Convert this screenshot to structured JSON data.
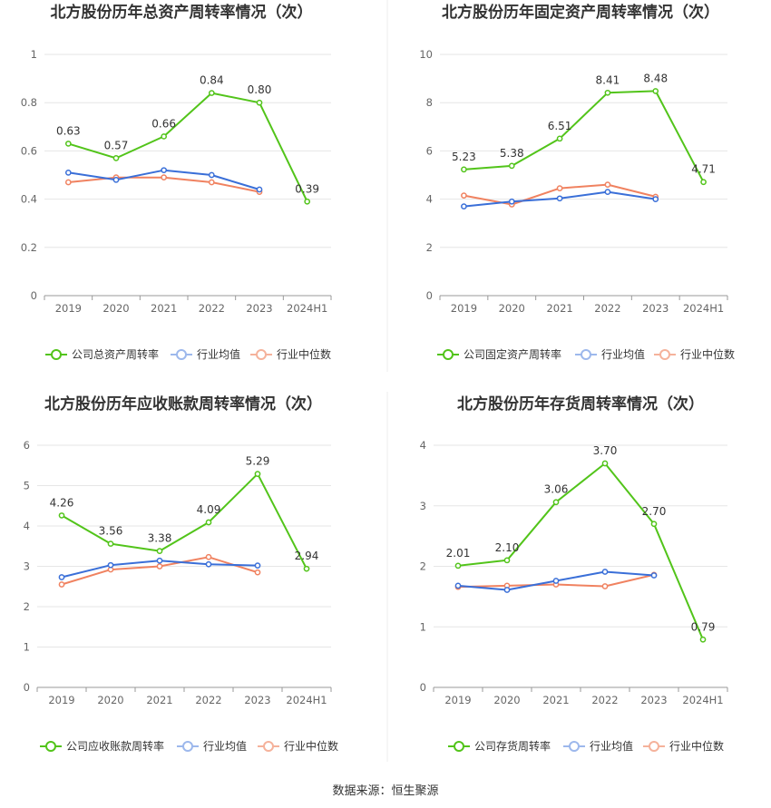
{
  "colors": {
    "company": "#52c41a",
    "industry_avg": "#3a6fd8",
    "industry_median": "#f08260",
    "grid": "#e6e6e6",
    "axis": "#999999"
  },
  "source": "数据来源：恒生聚源",
  "chart_data": [
    {
      "type": "line",
      "title": "北方股份历年总资产周转率情况（次）",
      "categories": [
        "2019",
        "2020",
        "2021",
        "2022",
        "2023",
        "2024H1"
      ],
      "ylim": [
        0,
        1
      ],
      "yticks": [
        "0",
        "0.2",
        "0.4",
        "0.6",
        "0.8",
        "1"
      ],
      "ytick_values": [
        0,
        0.2,
        0.4,
        0.6,
        0.8,
        1
      ],
      "series": [
        {
          "name": "公司总资产周转率",
          "values": [
            0.63,
            0.57,
            0.66,
            0.84,
            0.8,
            0.39
          ],
          "labels": [
            "0.63",
            "0.57",
            "0.66",
            "0.84",
            "0.80",
            "0.39"
          ]
        },
        {
          "name": "行业均值",
          "values": [
            0.51,
            0.48,
            0.52,
            0.5,
            0.44,
            null
          ]
        },
        {
          "name": "行业中位数",
          "values": [
            0.47,
            0.49,
            0.49,
            0.47,
            0.43,
            null
          ]
        }
      ]
    },
    {
      "type": "line",
      "title": "北方股份历年固定资产周转率情况（次）",
      "categories": [
        "2019",
        "2020",
        "2021",
        "2022",
        "2023",
        "2024H1"
      ],
      "ylim": [
        0,
        10
      ],
      "yticks": [
        "0",
        "2",
        "4",
        "6",
        "8",
        "10"
      ],
      "ytick_values": [
        0,
        2,
        4,
        6,
        8,
        10
      ],
      "series": [
        {
          "name": "公司固定资产周转率",
          "values": [
            5.23,
            5.38,
            6.51,
            8.41,
            8.48,
            4.71
          ],
          "labels": [
            "5.23",
            "5.38",
            "6.51",
            "8.41",
            "8.48",
            "4.71"
          ]
        },
        {
          "name": "行业均值",
          "values": [
            3.7,
            3.9,
            4.03,
            4.3,
            4.0,
            null
          ]
        },
        {
          "name": "行业中位数",
          "values": [
            4.15,
            3.78,
            4.45,
            4.6,
            4.1,
            null
          ]
        }
      ]
    },
    {
      "type": "line",
      "title": "北方股份历年应收账款周转率情况（次）",
      "categories": [
        "2019",
        "2020",
        "2021",
        "2022",
        "2023",
        "2024H1"
      ],
      "ylim": [
        0,
        6
      ],
      "yticks": [
        "0",
        "1",
        "2",
        "3",
        "4",
        "5",
        "6"
      ],
      "ytick_values": [
        0,
        1,
        2,
        3,
        4,
        5,
        6
      ],
      "series": [
        {
          "name": "公司应收账款周转率",
          "values": [
            4.26,
            3.56,
            3.38,
            4.09,
            5.29,
            2.94
          ],
          "labels": [
            "4.26",
            "3.56",
            "3.38",
            "4.09",
            "5.29",
            "2.94"
          ]
        },
        {
          "name": "行业均值",
          "values": [
            2.73,
            3.03,
            3.14,
            3.05,
            3.02,
            null
          ]
        },
        {
          "name": "行业中位数",
          "values": [
            2.55,
            2.92,
            3.0,
            3.23,
            2.85,
            null
          ]
        }
      ]
    },
    {
      "type": "line",
      "title": "北方股份历年存货周转率情况（次）",
      "categories": [
        "2019",
        "2020",
        "2021",
        "2022",
        "2023",
        "2024H1"
      ],
      "ylim": [
        0,
        4
      ],
      "yticks": [
        "0",
        "1",
        "2",
        "3",
        "4"
      ],
      "ytick_values": [
        0,
        1,
        2,
        3,
        4
      ],
      "series": [
        {
          "name": "公司存货周转率",
          "values": [
            2.01,
            2.1,
            3.06,
            3.7,
            2.7,
            0.79
          ],
          "labels": [
            "2.01",
            "2.10",
            "3.06",
            "3.70",
            "2.70",
            "0.79"
          ]
        },
        {
          "name": "行业均值",
          "values": [
            1.68,
            1.61,
            1.76,
            1.91,
            1.85,
            null
          ]
        },
        {
          "name": "行业中位数",
          "values": [
            1.66,
            1.68,
            1.7,
            1.67,
            1.86,
            null
          ]
        }
      ]
    }
  ]
}
